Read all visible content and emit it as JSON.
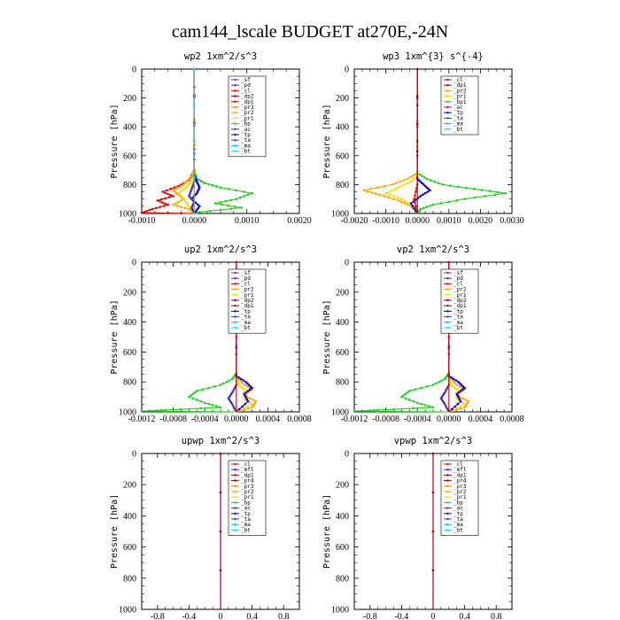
{
  "title": "cam144_lscale  BUDGET at270E,-24N",
  "colors": {
    "sf": "#8a2be2",
    "pd": "#4b2fae",
    "cl": "#e00000",
    "dp2": "#8b0000",
    "dp1": "#b00000",
    "pr4": "#8b0000",
    "pr3": "#ff7f00",
    "pr2": "#ffa500",
    "pr1": "#ffd700",
    "bp": "#22cc22",
    "ac": "#7b1fa2",
    "tp": "#0000cc",
    "ta": "#1e3fff",
    "ma": "#00bfff",
    "bt": "#00e5ff",
    "mfl": "#6a0dad"
  },
  "chart_data": [
    {
      "type": "line",
      "title": "wp2   1xm^2/s^3",
      "ylabel": "Pressure  [hPa]",
      "xlim": [
        -0.001,
        0.002
      ],
      "ylim": [
        1000,
        0
      ],
      "xticks": [
        -0.001,
        0,
        0.001,
        0.002
      ],
      "xticklabels": [
        "-0.0010",
        "0.0000",
        "0.0010",
        "0.0020"
      ],
      "yticks": [
        0,
        200,
        400,
        600,
        800,
        1000
      ],
      "yticklabels": [
        "0",
        "200",
        "400",
        "600",
        "800",
        "1000"
      ],
      "legend": [
        "_sf",
        "_pd",
        "_cl",
        "_dp2",
        "_dp1",
        "_pr3",
        "_pr2",
        "_pr1",
        "_bp",
        "_ac",
        "_tp",
        "_ta",
        "_ma",
        "_bt"
      ],
      "series": [
        {
          "name": "_bp",
          "color": "#22cc22",
          "x": [
            0.0,
            0.0,
            5e-05,
            0.0002,
            0.0005,
            0.0011,
            0.0008,
            0.0004,
            0.0009,
            0.0001,
            0.0
          ],
          "y": [
            0,
            700,
            760,
            790,
            820,
            860,
            900,
            930,
            960,
            990,
            1000
          ]
        },
        {
          "name": "_cl",
          "color": "#e00000",
          "x": [
            0.0,
            0.0,
            -0.0001,
            -0.0003,
            -0.0006,
            -0.0004,
            -0.0007,
            -0.0005,
            -0.0008,
            -0.001,
            0.0
          ],
          "y": [
            0,
            700,
            770,
            810,
            850,
            880,
            910,
            940,
            970,
            995,
            1000
          ]
        },
        {
          "name": "_pr2",
          "color": "#ffa500",
          "x": [
            0.0,
            0.0,
            -0.0001,
            -0.0002,
            -0.0004,
            -0.0003,
            -0.0002,
            -0.0004,
            -0.0001,
            0.0
          ],
          "y": [
            0,
            700,
            760,
            800,
            840,
            870,
            900,
            940,
            970,
            1000
          ]
        },
        {
          "name": "_pr1",
          "color": "#ffd700",
          "x": [
            0.0,
            0.0,
            -5e-05,
            -0.00015,
            -0.0003,
            -0.0002,
            -0.0001,
            0.0
          ],
          "y": [
            0,
            720,
            780,
            820,
            860,
            900,
            950,
            1000
          ]
        },
        {
          "name": "_tp",
          "color": "#0000cc",
          "x": [
            0.0,
            0.0,
            5e-05,
            0.0001,
            5e-05,
            -5e-05,
            0.0001,
            0.0
          ],
          "y": [
            0,
            740,
            780,
            820,
            860,
            900,
            950,
            1000
          ]
        },
        {
          "name": "_pd",
          "color": "#4b2fae",
          "x": [
            0.0,
            0.0,
            -5e-05,
            -0.0001,
            0.0,
            -5e-05,
            0.0
          ],
          "y": [
            0,
            780,
            830,
            880,
            920,
            960,
            1000
          ]
        },
        {
          "name": "_dp2",
          "color": "#8b0000",
          "x": [
            0.0,
            0.0,
            0.0
          ],
          "y": [
            0,
            500,
            1000
          ]
        },
        {
          "name": "_bt",
          "color": "#00e5ff",
          "x": [
            0.0,
            0.0
          ],
          "y": [
            0,
            1000
          ]
        }
      ]
    },
    {
      "type": "line",
      "title": "wp3   1xm^{3} s^{-4}",
      "ylabel": "Pressure  [hPa]",
      "xlim": [
        -0.002,
        0.003
      ],
      "ylim": [
        1000,
        0
      ],
      "xticks": [
        -0.002,
        -0.001,
        0,
        0.001,
        0.002,
        0.003
      ],
      "xticklabels": [
        "-0.0020",
        "-0.0010",
        "0.0000",
        "0.0010",
        "0.0020",
        "0.0030"
      ],
      "yticks": [
        0,
        200,
        400,
        600,
        800,
        1000
      ],
      "yticklabels": [
        "0",
        "200",
        "400",
        "600",
        "800",
        "1000"
      ],
      "legend": [
        "_cl",
        "_dp1",
        "_pr2",
        "_pr1",
        "_bp1",
        "_ac",
        "_tp",
        "_ta",
        "_ma",
        "_bt"
      ],
      "series": [
        {
          "name": "_bp1",
          "color": "#22cc22",
          "x": [
            0.0,
            0.0,
            0.0003,
            0.0008,
            0.0018,
            0.0028,
            0.0015,
            0.0005,
            0.0001,
            0.0
          ],
          "y": [
            0,
            720,
            760,
            800,
            830,
            860,
            900,
            940,
            970,
            1000
          ]
        },
        {
          "name": "_pr2",
          "color": "#ffa500",
          "x": [
            0.0,
            0.0,
            -0.0003,
            -0.0008,
            -0.0017,
            -0.0012,
            -0.0006,
            -0.0002,
            0.0
          ],
          "y": [
            0,
            720,
            760,
            800,
            840,
            870,
            910,
            950,
            1000
          ]
        },
        {
          "name": "_pr1",
          "color": "#ffd700",
          "x": [
            0.0,
            0.0,
            -0.0002,
            -0.0006,
            -0.001,
            -0.0005,
            -0.0001,
            0.0
          ],
          "y": [
            0,
            740,
            780,
            820,
            860,
            900,
            950,
            1000
          ]
        },
        {
          "name": "_tp",
          "color": "#0000cc",
          "x": [
            0.0,
            0.0,
            0.0002,
            0.0004,
            0.0001,
            -0.0002,
            0.0
          ],
          "y": [
            0,
            760,
            800,
            840,
            880,
            930,
            1000
          ]
        },
        {
          "name": "_cl",
          "color": "#e00000",
          "x": [
            0.0,
            0.0,
            -0.0001,
            0.0
          ],
          "y": [
            0,
            800,
            900,
            1000
          ]
        },
        {
          "name": "_dp1",
          "color": "#b00000",
          "x": [
            0.0,
            0.0
          ],
          "y": [
            0,
            1000
          ]
        }
      ]
    },
    {
      "type": "line",
      "title": "up2   1xm^2/s^3",
      "ylabel": "Pressure  [hPa]",
      "xlim": [
        -0.0012,
        0.0008
      ],
      "ylim": [
        1000,
        0
      ],
      "xticks": [
        -0.0012,
        -0.0008,
        -0.0004,
        0,
        0.0004,
        0.0008
      ],
      "xticklabels": [
        "-0.0012",
        "-0.0008",
        "-0.0004",
        "0.0000",
        "0.0004",
        "0.0008"
      ],
      "yticks": [
        0,
        200,
        400,
        600,
        800,
        1000
      ],
      "yticklabels": [
        "0",
        "200",
        "400",
        "600",
        "800",
        "1000"
      ],
      "legend": [
        "_sf",
        "_pd",
        "_cl",
        "_pr2",
        "_pr1",
        "_dp2",
        "_dp1",
        "_tp",
        "_ta",
        "_ma",
        "_bt"
      ],
      "series": [
        {
          "name": "_dp2",
          "color": "#22cc22",
          "x": [
            0.0,
            0.0,
            -5e-05,
            -0.0002,
            -0.0005,
            -0.0006,
            -0.0004,
            -0.0002,
            -0.0012,
            0.0
          ],
          "y": [
            0,
            740,
            780,
            820,
            860,
            900,
            940,
            970,
            995,
            1000
          ]
        },
        {
          "name": "_pr2",
          "color": "#ffa500",
          "x": [
            0.0,
            0.0,
            8e-05,
            0.0002,
            0.0001,
            0.00025,
            0.0002,
            0.0
          ],
          "y": [
            0,
            760,
            810,
            850,
            890,
            930,
            970,
            1000
          ]
        },
        {
          "name": "_pr1",
          "color": "#ffd700",
          "x": [
            0.0,
            0.0,
            5e-05,
            0.00015,
            0.0001,
            0.0002,
            0.0
          ],
          "y": [
            0,
            780,
            830,
            870,
            910,
            950,
            1000
          ]
        },
        {
          "name": "_tp",
          "color": "#0000cc",
          "x": [
            0.0,
            0.0,
            0.00012,
            0.0002,
            0.0001,
            0.00015,
            0.0
          ],
          "y": [
            0,
            760,
            800,
            840,
            880,
            930,
            1000
          ]
        },
        {
          "name": "_pd",
          "color": "#4b2fae",
          "x": [
            0.0,
            0.0,
            -5e-05,
            -0.0001,
            -5e-05,
            0.0
          ],
          "y": [
            0,
            820,
            870,
            910,
            950,
            1000
          ]
        },
        {
          "name": "_cl",
          "color": "#e00000",
          "x": [
            0.0,
            0.0
          ],
          "y": [
            0,
            1000
          ]
        }
      ]
    },
    {
      "type": "line",
      "title": "vp2   1xm^2/s^3",
      "ylabel": "Pressure  [hPa]",
      "xlim": [
        -0.0012,
        0.0008
      ],
      "ylim": [
        1000,
        0
      ],
      "xticks": [
        -0.0012,
        -0.0008,
        -0.0004,
        0,
        0.0004,
        0.0008
      ],
      "xticklabels": [
        "-0.0012",
        "-0.0008",
        "-0.0004",
        "0.0000",
        "0.0004",
        "0.0008"
      ],
      "yticks": [
        0,
        200,
        400,
        600,
        800,
        1000
      ],
      "yticklabels": [
        "0",
        "200",
        "400",
        "600",
        "800",
        "1000"
      ],
      "legend": [
        "_sf",
        "_pd",
        "_cl",
        "_pr2",
        "_pr1",
        "_dp2",
        "_dp1",
        "_tp",
        "_ta",
        "_ma",
        "_bt"
      ],
      "series": [
        {
          "name": "_dp2",
          "color": "#22cc22",
          "x": [
            0.0,
            0.0,
            -5e-05,
            -0.0002,
            -0.0005,
            -0.0006,
            -0.0004,
            -0.0002,
            -0.0012,
            0.0
          ],
          "y": [
            0,
            740,
            780,
            820,
            860,
            900,
            940,
            970,
            995,
            1000
          ]
        },
        {
          "name": "_pr2",
          "color": "#ffa500",
          "x": [
            0.0,
            0.0,
            8e-05,
            0.0002,
            0.0001,
            0.00025,
            0.0002,
            0.0
          ],
          "y": [
            0,
            760,
            810,
            850,
            890,
            930,
            970,
            1000
          ]
        },
        {
          "name": "_pr1",
          "color": "#ffd700",
          "x": [
            0.0,
            0.0,
            5e-05,
            0.00015,
            0.0001,
            0.0002,
            0.0
          ],
          "y": [
            0,
            780,
            830,
            870,
            910,
            950,
            1000
          ]
        },
        {
          "name": "_tp",
          "color": "#0000cc",
          "x": [
            0.0,
            0.0,
            0.00012,
            0.0002,
            0.0001,
            0.00015,
            0.0
          ],
          "y": [
            0,
            760,
            800,
            840,
            880,
            930,
            1000
          ]
        },
        {
          "name": "_pd",
          "color": "#4b2fae",
          "x": [
            0.0,
            0.0,
            -5e-05,
            -0.0001,
            -5e-05,
            0.0
          ],
          "y": [
            0,
            820,
            870,
            910,
            950,
            1000
          ]
        },
        {
          "name": "_cl",
          "color": "#e00000",
          "x": [
            0.0,
            0.0
          ],
          "y": [
            0,
            1000
          ]
        }
      ]
    },
    {
      "type": "line",
      "title": "upwp   1xm^2/s^3",
      "ylabel": "Pressure  [hPa]",
      "xlim": [
        -1.0,
        1.0
      ],
      "ylim": [
        1000,
        0
      ],
      "xticks": [
        -0.8,
        -0.4,
        0,
        0.4,
        0.8
      ],
      "xticklabels": [
        "-0.8",
        "-0.4",
        "0",
        "0.4",
        "0.8"
      ],
      "yticks": [
        0,
        200,
        400,
        600,
        800,
        1000
      ],
      "yticklabels": [
        "0",
        "200",
        "400",
        "600",
        "800",
        "1000"
      ],
      "legend": [
        "_cl",
        "_mfl",
        "_dp1",
        "_pr4",
        "_pr3",
        "_pr2",
        "_pr1",
        "_bp",
        "_ac",
        "_tp",
        "_ta",
        "_ma",
        "_bt"
      ],
      "series": [
        {
          "name": "_mfl",
          "color": "#6a0dad",
          "x": [
            0.0,
            0.0
          ],
          "y": [
            0,
            1000
          ]
        },
        {
          "name": "_dp1",
          "color": "#b00000",
          "x": [
            0.0,
            0.0
          ],
          "y": [
            0,
            1000
          ]
        }
      ]
    },
    {
      "type": "line",
      "title": "vpwp   1xm^2/s^3",
      "ylabel": "Pressure  [hPa]",
      "xlim": [
        -1.0,
        1.0
      ],
      "ylim": [
        1000,
        0
      ],
      "xticks": [
        -0.8,
        -0.4,
        0,
        0.4,
        0.8
      ],
      "xticklabels": [
        "-0.8",
        "-0.4",
        "0",
        "0.4",
        "0.8"
      ],
      "yticks": [
        0,
        200,
        400,
        600,
        800,
        1000
      ],
      "yticklabels": [
        "0",
        "200",
        "400",
        "600",
        "800",
        "1000"
      ],
      "legend": [
        "_cl",
        "_mfl",
        "_dp1",
        "_pr4",
        "_pr3",
        "_pr2",
        "_pr1",
        "_bp",
        "_ac",
        "_tp",
        "_ta",
        "_ma",
        "_bt"
      ],
      "series": [
        {
          "name": "_mfl",
          "color": "#6a0dad",
          "x": [
            0.0,
            0.0
          ],
          "y": [
            0,
            1000
          ]
        },
        {
          "name": "_dp1",
          "color": "#b00000",
          "x": [
            0.0,
            0.0
          ],
          "y": [
            0,
            1000
          ]
        }
      ]
    }
  ]
}
